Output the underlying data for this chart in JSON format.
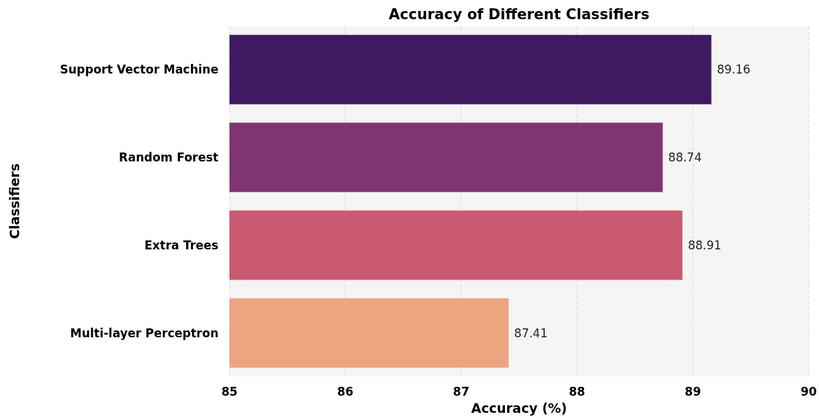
{
  "chart_data": {
    "type": "bar",
    "orientation": "horizontal",
    "title": "Accuracy of Different Classifiers",
    "xlabel": "Accuracy (%)",
    "ylabel": "Classifiers",
    "categories": [
      "Support Vector Machine",
      "Random Forest",
      "Extra Trees",
      "Multi-layer Perceptron"
    ],
    "values": [
      89.16,
      88.74,
      88.91,
      87.41
    ],
    "colors": [
      "#3f1a63",
      "#7f3573",
      "#c95a70",
      "#eca57f"
    ],
    "xlim": [
      85,
      90
    ],
    "xticks": [
      85,
      86,
      87,
      88,
      89,
      90
    ],
    "grid": "x",
    "data_labels": true
  }
}
